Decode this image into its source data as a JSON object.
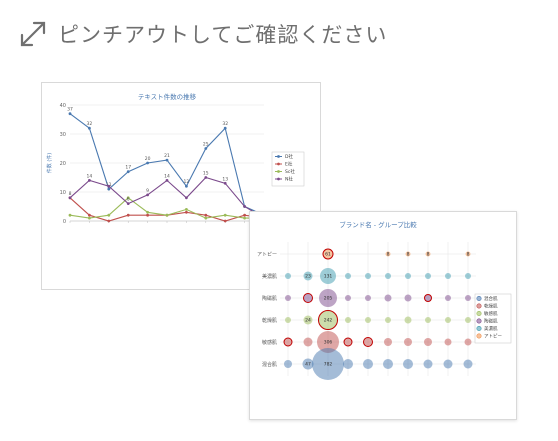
{
  "hint": {
    "text": "ピンチアウトしてご確認ください",
    "icon": "pinch-expand-icon"
  },
  "chart_data": [
    {
      "type": "line",
      "title": "テキスト件数の推移",
      "ylabel": "件数 (件)",
      "ylim": [
        0,
        40
      ],
      "yticks": [
        0,
        10,
        20,
        30,
        40
      ],
      "grid": true,
      "legend_position": "right",
      "categories": [
        "",
        "",
        "",
        "",
        "",
        "",
        "",
        "",
        "",
        "",
        ""
      ],
      "series": [
        {
          "name": "D社",
          "color": "#4a79b0",
          "values": [
            37,
            32,
            11,
            17,
            20,
            21,
            12,
            25,
            32,
            5,
            2
          ]
        },
        {
          "name": "E社",
          "color": "#c0504d",
          "values": [
            8,
            2,
            0,
            2,
            2,
            2,
            3,
            2,
            0,
            2,
            1
          ]
        },
        {
          "name": "Sc社",
          "color": "#9bbb59",
          "values": [
            2,
            1,
            2,
            8,
            3,
            2,
            4,
            1,
            2,
            1,
            1
          ]
        },
        {
          "name": "N社",
          "color": "#7b4a8c",
          "values": [
            8,
            14,
            12,
            6,
            9,
            14,
            8,
            15,
            13,
            5,
            1
          ]
        }
      ],
      "labels": {
        "D社": [
          "37",
          "32",
          "11",
          "17",
          "20",
          "21",
          "12",
          "25",
          "32",
          "",
          ""
        ],
        "N社": [
          "8",
          "14",
          "",
          "6",
          "9",
          "14",
          "",
          "15",
          "13",
          "",
          ""
        ]
      }
    },
    {
      "type": "scatter",
      "title": "ブランド名 - グループ比較",
      "legend_position": "right",
      "grid": true,
      "rows": [
        "アトピー",
        "美濃肌",
        "陶磁肌",
        "乾燥肌",
        "敏感肌",
        "混合肌"
      ],
      "cols": [
        "",
        "",
        "",
        "",
        "",
        "",
        "",
        "",
        "",
        ""
      ],
      "series": [
        {
          "name": "混合肌",
          "color": "#4a79b0"
        },
        {
          "name": "乾燥肌",
          "color": "#c0504d"
        },
        {
          "name": "敏感肌",
          "color": "#9bbb59"
        },
        {
          "name": "陶磁肌",
          "color": "#7b4a8c"
        },
        {
          "name": "美濃肌",
          "color": "#3e9bb0"
        },
        {
          "name": "アトピー",
          "color": "#f0904a"
        }
      ],
      "highlighted": [
        {
          "row": 0,
          "col": 2
        },
        {
          "row": 2,
          "col": 1
        },
        {
          "row": 2,
          "col": 7
        },
        {
          "row": 3,
          "col": 2
        },
        {
          "row": 4,
          "col": 0
        },
        {
          "row": 4,
          "col": 3
        },
        {
          "row": 4,
          "col": 4
        }
      ],
      "cells": [
        {
          "row": 0,
          "col": 2,
          "value": "61",
          "r": 5
        },
        {
          "row": 0,
          "col": 5,
          "value": "8",
          "r": 2.5
        },
        {
          "row": 0,
          "col": 6,
          "value": "8",
          "r": 2.5
        },
        {
          "row": 0,
          "col": 7,
          "value": "8",
          "r": 2.5
        },
        {
          "row": 0,
          "col": 9,
          "value": "8",
          "r": 2.5
        },
        {
          "row": 1,
          "col": 0,
          "value": "",
          "r": 3
        },
        {
          "row": 1,
          "col": 1,
          "value": "23",
          "r": 4.5
        },
        {
          "row": 1,
          "col": 2,
          "value": "131",
          "r": 8
        },
        {
          "row": 1,
          "col": 3,
          "value": "",
          "r": 3
        },
        {
          "row": 1,
          "col": 4,
          "value": "",
          "r": 3
        },
        {
          "row": 1,
          "col": 5,
          "value": "",
          "r": 3
        },
        {
          "row": 1,
          "col": 6,
          "value": "",
          "r": 3
        },
        {
          "row": 1,
          "col": 7,
          "value": "",
          "r": 3
        },
        {
          "row": 1,
          "col": 8,
          "value": "",
          "r": 3
        },
        {
          "row": 1,
          "col": 9,
          "value": "",
          "r": 3
        },
        {
          "row": 2,
          "col": 0,
          "value": "",
          "r": 3
        },
        {
          "row": 2,
          "col": 1,
          "value": "",
          "r": 4.5
        },
        {
          "row": 2,
          "col": 2,
          "value": "205",
          "r": 9
        },
        {
          "row": 2,
          "col": 3,
          "value": "",
          "r": 3
        },
        {
          "row": 2,
          "col": 4,
          "value": "",
          "r": 3
        },
        {
          "row": 2,
          "col": 5,
          "value": "",
          "r": 3.5
        },
        {
          "row": 2,
          "col": 6,
          "value": "",
          "r": 3.5
        },
        {
          "row": 2,
          "col": 7,
          "value": "",
          "r": 3.5
        },
        {
          "row": 2,
          "col": 8,
          "value": "",
          "r": 3
        },
        {
          "row": 2,
          "col": 9,
          "value": "",
          "r": 3
        },
        {
          "row": 3,
          "col": 0,
          "value": "",
          "r": 3
        },
        {
          "row": 3,
          "col": 1,
          "value": "24",
          "r": 4.5
        },
        {
          "row": 3,
          "col": 2,
          "value": "242",
          "r": 9.5
        },
        {
          "row": 3,
          "col": 3,
          "value": "",
          "r": 3
        },
        {
          "row": 3,
          "col": 4,
          "value": "",
          "r": 3
        },
        {
          "row": 3,
          "col": 5,
          "value": "",
          "r": 3
        },
        {
          "row": 3,
          "col": 6,
          "value": "",
          "r": 3.5
        },
        {
          "row": 3,
          "col": 7,
          "value": "",
          "r": 3
        },
        {
          "row": 3,
          "col": 8,
          "value": "",
          "r": 3
        },
        {
          "row": 3,
          "col": 9,
          "value": "",
          "r": 3
        },
        {
          "row": 4,
          "col": 0,
          "value": "",
          "r": 4
        },
        {
          "row": 4,
          "col": 1,
          "value": "",
          "r": 4.5
        },
        {
          "row": 4,
          "col": 2,
          "value": "306",
          "r": 11
        },
        {
          "row": 4,
          "col": 3,
          "value": "",
          "r": 4
        },
        {
          "row": 4,
          "col": 4,
          "value": "",
          "r": 4.5
        },
        {
          "row": 4,
          "col": 5,
          "value": "",
          "r": 4
        },
        {
          "row": 4,
          "col": 6,
          "value": "",
          "r": 4
        },
        {
          "row": 4,
          "col": 7,
          "value": "",
          "r": 4
        },
        {
          "row": 4,
          "col": 8,
          "value": "",
          "r": 3.5
        },
        {
          "row": 4,
          "col": 9,
          "value": "",
          "r": 3.5
        },
        {
          "row": 5,
          "col": 0,
          "value": "",
          "r": 4
        },
        {
          "row": 5,
          "col": 1,
          "value": "47",
          "r": 5.5
        },
        {
          "row": 5,
          "col": 2,
          "value": "782",
          "r": 16
        },
        {
          "row": 5,
          "col": 3,
          "value": "",
          "r": 5
        },
        {
          "row": 5,
          "col": 4,
          "value": "",
          "r": 5
        },
        {
          "row": 5,
          "col": 5,
          "value": "",
          "r": 5
        },
        {
          "row": 5,
          "col": 6,
          "value": "",
          "r": 5
        },
        {
          "row": 5,
          "col": 7,
          "value": "",
          "r": 4.5
        },
        {
          "row": 5,
          "col": 8,
          "value": "",
          "r": 4.5
        },
        {
          "row": 5,
          "col": 9,
          "value": "",
          "r": 4.5
        }
      ]
    }
  ]
}
